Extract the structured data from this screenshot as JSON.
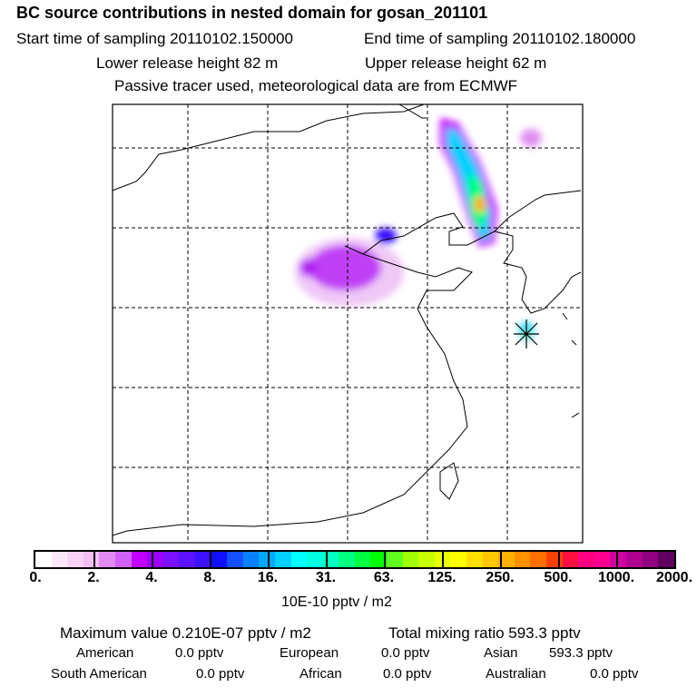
{
  "title": "BC  source contributions in nested domain for gosan_201101",
  "start_time": "Start time of sampling 20110102.150000",
  "end_time": "End time of sampling 20110102.180000",
  "lower_height": "Lower release height   82 m",
  "upper_height": "Upper release height   62 m",
  "note": "Passive tracer used, meteorological data are from ECMWF",
  "colorbar": {
    "labels": [
      "0.",
      "2.",
      "4.",
      "8.",
      "16.",
      "31.",
      "63.",
      "125.",
      "250.",
      "500.",
      "1000.",
      "2000."
    ],
    "colors": [
      "#ffffff",
      "#fde8fb",
      "#f9d3f6",
      "#f3bff2",
      "#e08af2",
      "#d060f6",
      "#c000ff",
      "#9b00ff",
      "#7a10ff",
      "#5b12ff",
      "#3a10ff",
      "#1010ff",
      "#1450ff",
      "#0a80ff",
      "#00a8ff",
      "#00d0ff",
      "#00ffff",
      "#00ffe0",
      "#00ffc0",
      "#00ff80",
      "#00ff40",
      "#00ff00",
      "#60ff20",
      "#a0ff00",
      "#c8ff00",
      "#e8ff00",
      "#ffff00",
      "#ffe000",
      "#ffc800",
      "#ffb000",
      "#ff9000",
      "#ff7000",
      "#ff4000",
      "#ff1040",
      "#ff0080",
      "#ff0090",
      "#d000a0",
      "#b00090",
      "#900080",
      "#600060"
    ],
    "unit": "10E-10 pptv / m2"
  },
  "summary": {
    "max_value": "Maximum value  0.210E-07 pptv / m2",
    "total": "Total mixing ratio      593.3 pptv",
    "american_l": "American",
    "american_v": "0.0 pptv",
    "european_l": "European",
    "european_v": "0.0 pptv",
    "asian_l": "Asian",
    "asian_v": "593.3 pptv",
    "southam_l": "South American",
    "southam_v": "0.0 pptv",
    "african_l": "African",
    "african_v": "0.0 pptv",
    "australian_l": "Australian",
    "australian_v": "0.0 pptv"
  }
}
